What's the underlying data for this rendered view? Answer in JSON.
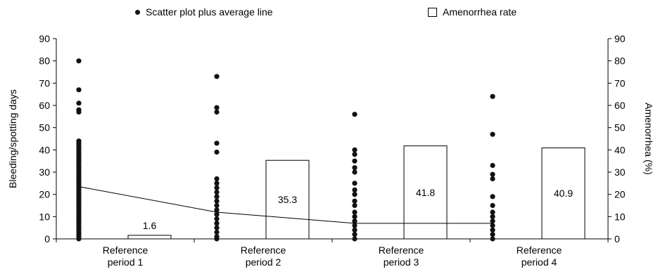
{
  "legend": {
    "scatter_label": "Scatter plot plus average line",
    "bar_label": "Amenorrhea rate"
  },
  "chart_data": {
    "type": "bar",
    "categories": [
      "Reference period 1",
      "Reference period 2",
      "Reference period 3",
      "Reference period 4"
    ],
    "category_lines": [
      [
        "Reference",
        "period 1"
      ],
      [
        "Reference",
        "period 2"
      ],
      [
        "Reference",
        "period 3"
      ],
      [
        "Reference",
        "period 4"
      ]
    ],
    "ylabel_left": "Bleeding/spotting days",
    "ylabel_right": "Amenorrhea (%)",
    "ylim_left": [
      0,
      90
    ],
    "ylim_right": [
      0,
      90
    ],
    "yticks": [
      0,
      10,
      20,
      30,
      40,
      50,
      60,
      70,
      80,
      90
    ],
    "grid": false,
    "series": [
      {
        "name": "Amenorrhea rate",
        "type": "bar",
        "axis": "right",
        "values": [
          1.6,
          35.3,
          41.8,
          40.9
        ],
        "labels": [
          "1.6",
          "35.3",
          "41.8",
          "40.9"
        ]
      },
      {
        "name": "Scatter plot plus average line",
        "type": "line",
        "axis": "left",
        "values": [
          23.5,
          12,
          7,
          7
        ]
      },
      {
        "name": "Scatter plot plus average line",
        "type": "scatter",
        "axis": "left",
        "points": [
          [
            80,
            67,
            61,
            58,
            57,
            44,
            43,
            42,
            41,
            40,
            39,
            38,
            37,
            36,
            35,
            34,
            33,
            32,
            31,
            30,
            29,
            28,
            27,
            26,
            25,
            24,
            23,
            22,
            21,
            20,
            19,
            18,
            17,
            16,
            15,
            14,
            13,
            12,
            11,
            10,
            9,
            8,
            7,
            6,
            5,
            4,
            3,
            2,
            1,
            0
          ],
          [
            73,
            59,
            57,
            43,
            39,
            27,
            25,
            23,
            21,
            19,
            17,
            15,
            13,
            11,
            9,
            7,
            5,
            3,
            1,
            0
          ],
          [
            56,
            40,
            38,
            35,
            32,
            30,
            25,
            22,
            20,
            17,
            15,
            12,
            10,
            8,
            6,
            4,
            2,
            0
          ],
          [
            64,
            47,
            33,
            29,
            27,
            19,
            15,
            12,
            10,
            8,
            6,
            4,
            2,
            0
          ]
        ]
      }
    ]
  }
}
